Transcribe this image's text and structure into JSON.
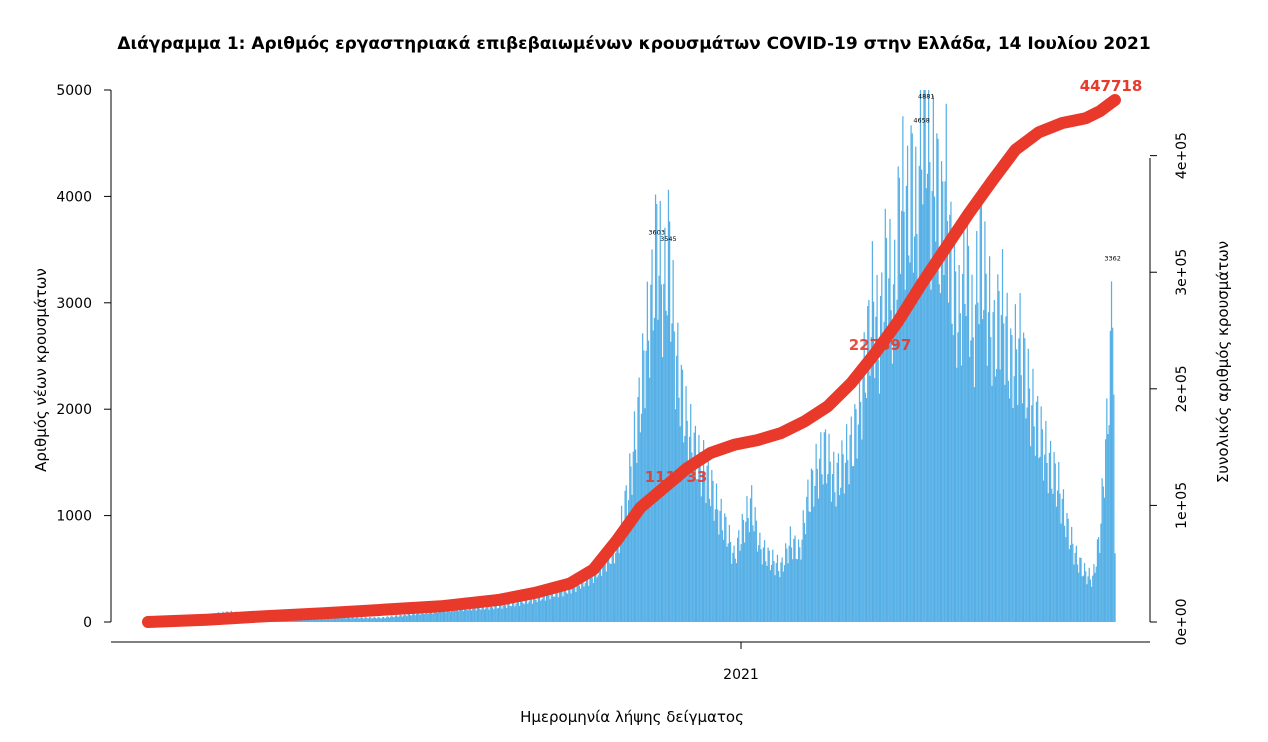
{
  "chart_data": {
    "type": "bar",
    "title": "Διάγραμμα 1: Αριθμός εργαστηριακά επιβεβαιωμένων κρουσμάτων COVID-19 στην Ελλάδα, 14 Ιουλίου 2021",
    "xlabel": "Ημερομηνία λήψης δείγματος",
    "ylabel": "Αριθμός νέων κρουσμάτων",
    "y2label": "Συνολικός αριθμός κρουσμάτων",
    "ylim": [
      0,
      5000
    ],
    "y2lim": [
      0,
      447718
    ],
    "yticks": [
      "0",
      "1000",
      "2000",
      "3000",
      "4000",
      "5000"
    ],
    "y2ticks": [
      "0e+00",
      "1e+05",
      "2e+05",
      "3e+05",
      "4e+05"
    ],
    "xticks": [
      "2021"
    ],
    "x_range_days": 495,
    "bar_color": "#56b0e6",
    "line_color": "#e8392b",
    "series": [
      {
        "kind": "bars",
        "points": [
          [
            0,
            2
          ],
          [
            8,
            5
          ],
          [
            15,
            20
          ],
          [
            22,
            40
          ],
          [
            28,
            60
          ],
          [
            35,
            80
          ],
          [
            40,
            100
          ],
          [
            45,
            120
          ],
          [
            48,
            160
          ],
          [
            52,
            90
          ],
          [
            58,
            60
          ],
          [
            62,
            40
          ],
          [
            68,
            30
          ],
          [
            72,
            50
          ],
          [
            76,
            160
          ],
          [
            80,
            60
          ],
          [
            85,
            40
          ],
          [
            90,
            30
          ],
          [
            95,
            25
          ],
          [
            100,
            20
          ],
          [
            105,
            15
          ],
          [
            110,
            20
          ],
          [
            115,
            30
          ],
          [
            120,
            20
          ],
          [
            125,
            15
          ],
          [
            130,
            20
          ],
          [
            135,
            25
          ],
          [
            140,
            20
          ],
          [
            145,
            25
          ],
          [
            150,
            20
          ],
          [
            155,
            20
          ],
          [
            160,
            25
          ],
          [
            165,
            30
          ],
          [
            170,
            35
          ],
          [
            175,
            30
          ],
          [
            180,
            30
          ],
          [
            185,
            35
          ],
          [
            190,
            40
          ],
          [
            195,
            45
          ],
          [
            200,
            40
          ],
          [
            205,
            35
          ],
          [
            210,
            40
          ],
          [
            215,
            45
          ],
          [
            220,
            50
          ],
          [
            225,
            50
          ],
          [
            230,
            60
          ],
          [
            235,
            80
          ],
          [
            240,
            100
          ],
          [
            245,
            140
          ],
          [
            250,
            180
          ],
          [
            255,
            230
          ],
          [
            260,
            280
          ],
          [
            265,
            320
          ],
          [
            270,
            300
          ],
          [
            275,
            260
          ],
          [
            280,
            220
          ],
          [
            285,
            180
          ],
          [
            290,
            160
          ],
          [
            295,
            200
          ],
          [
            300,
            260
          ],
          [
            305,
            300
          ],
          [
            310,
            320
          ],
          [
            315,
            340
          ],
          [
            320,
            360
          ],
          [
            325,
            330
          ],
          [
            330,
            300
          ],
          [
            335,
            270
          ],
          [
            340,
            260
          ],
          [
            345,
            250
          ],
          [
            350,
            290
          ],
          [
            355,
            350
          ],
          [
            360,
            420
          ],
          [
            365,
            500
          ],
          [
            370,
            540
          ],
          [
            375,
            600
          ],
          [
            378,
            620
          ],
          [
            382,
            640
          ],
          [
            385,
            700
          ],
          [
            390,
            800
          ],
          [
            395,
            880
          ],
          [
            398,
            930
          ],
          [
            402,
            980
          ],
          [
            406,
            1147
          ],
          [
            410,
            1254
          ],
          [
            414,
            1480
          ],
          [
            417,
            1825
          ],
          [
            420,
            2244
          ],
          [
            423,
            2433
          ],
          [
            425,
            3057
          ],
          [
            428,
            3055
          ],
          [
            430,
            2740
          ],
          [
            432,
            2759
          ],
          [
            434,
            3603
          ],
          [
            436,
            3086
          ],
          [
            438,
            3060
          ],
          [
            440,
            2983
          ],
          [
            442,
            2820
          ],
          [
            444,
            3545
          ],
          [
            446,
            3096
          ],
          [
            448,
            2768
          ],
          [
            450,
            2500
          ],
          [
            452,
            2533
          ],
          [
            455,
            2247
          ],
          [
            458,
            2072
          ],
          [
            460,
            1818
          ],
          [
            462,
            1753
          ],
          [
            464,
            2455
          ],
          [
            466,
            1892
          ],
          [
            468,
            1767
          ],
          [
            470,
            1493
          ],
          [
            472,
            1840
          ],
          [
            474,
            1556
          ],
          [
            476,
            1399
          ],
          [
            478,
            1399
          ]
        ]
      },
      {
        "kind": "cumulative",
        "points": [
          [
            0,
            0
          ],
          [
            50,
            2000
          ],
          [
            100,
            5000
          ],
          [
            150,
            7500
          ],
          [
            200,
            10500
          ],
          [
            250,
            13500
          ],
          [
            300,
            19000
          ],
          [
            330,
            25000
          ],
          [
            360,
            33000
          ],
          [
            380,
            45000
          ],
          [
            400,
            70000
          ],
          [
            420,
            98000
          ],
          [
            440,
            115000
          ],
          [
            460,
            132000
          ],
          [
            480,
            145000
          ],
          [
            500,
            152000
          ],
          [
            520,
            156000
          ],
          [
            540,
            162000
          ],
          [
            560,
            172000
          ],
          [
            580,
            185000
          ],
          [
            600,
            205000
          ],
          [
            620,
            230000
          ],
          [
            640,
            258000
          ],
          [
            660,
            290000
          ],
          [
            680,
            320000
          ],
          [
            700,
            350000
          ],
          [
            720,
            378000
          ],
          [
            740,
            405000
          ],
          [
            760,
            420000
          ],
          [
            780,
            428000
          ],
          [
            800,
            432000
          ],
          [
            812,
            438000
          ],
          [
            820,
            444000
          ],
          [
            825,
            447718
          ]
        ]
      }
    ],
    "peak_labels": [
      "3603",
      "3545",
      "4881",
      "4658",
      "447718"
    ],
    "mid_labels": [
      "111733",
      "227597"
    ]
  }
}
